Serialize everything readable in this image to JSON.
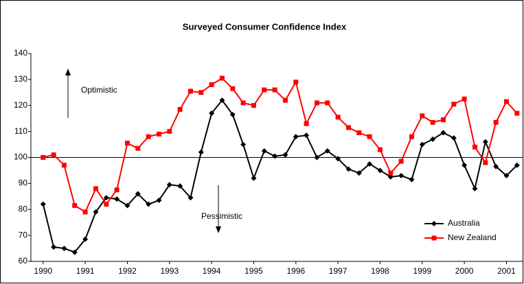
{
  "chart_data": {
    "type": "line",
    "title": "Surveyed Consumer Confidence Index",
    "x": [
      1990,
      1990.25,
      1990.5,
      1990.75,
      1991,
      1991.25,
      1991.5,
      1991.75,
      1992,
      1992.25,
      1992.5,
      1992.75,
      1993,
      1993.25,
      1993.5,
      1993.75,
      1994,
      1994.25,
      1994.5,
      1994.75,
      1995,
      1995.25,
      1995.5,
      1995.75,
      1996,
      1996.25,
      1996.5,
      1996.75,
      1997,
      1997.25,
      1997.5,
      1997.75,
      1998,
      1998.25,
      1998.5,
      1998.75,
      1999,
      1999.25,
      1999.5,
      1999.75,
      2000,
      2000.25,
      2000.5,
      2000.75,
      2001,
      2001.25
    ],
    "series": [
      {
        "name": "Australia",
        "color": "#000000",
        "marker": "diamond",
        "values": [
          82,
          65.5,
          65,
          63.5,
          68.5,
          79,
          84.5,
          84,
          81.5,
          86,
          82,
          83.5,
          89.5,
          89,
          84.5,
          102,
          117,
          122,
          116.5,
          105,
          92,
          102.5,
          100.5,
          101,
          108,
          108.5,
          100,
          102.5,
          99.5,
          95.5,
          94,
          97.5,
          95,
          92.5,
          93,
          91.5,
          105,
          107,
          109.5,
          107.5,
          97,
          88,
          106,
          96.5,
          93,
          97
        ]
      },
      {
        "name": "New Zealand",
        "color": "#ff0000",
        "marker": "square",
        "values": [
          100,
          101,
          97,
          81.5,
          79,
          88,
          82,
          87.5,
          105.5,
          103.5,
          108,
          109,
          110,
          118.5,
          125.5,
          125,
          128,
          130.5,
          126.5,
          121,
          120,
          126,
          126,
          122,
          129,
          113,
          121,
          121,
          115.5,
          111.5,
          109.5,
          108,
          103,
          94,
          98.5,
          108,
          116,
          113.5,
          114.5,
          120.5,
          122.5,
          104,
          98,
          113.5,
          121.5,
          117
        ]
      }
    ],
    "xlim": [
      1989.71,
      2001.4
    ],
    "xticks": [
      1990,
      1991,
      1992,
      1993,
      1994,
      1995,
      1996,
      1997,
      1998,
      1999,
      2000,
      2001
    ],
    "ylim": [
      60,
      140
    ],
    "yticks": [
      60,
      70,
      80,
      90,
      100,
      110,
      120,
      130,
      140
    ],
    "reference_line": 100,
    "annotations": [
      "Optimistic",
      "Pessimistic"
    ],
    "legend": "lower right"
  }
}
